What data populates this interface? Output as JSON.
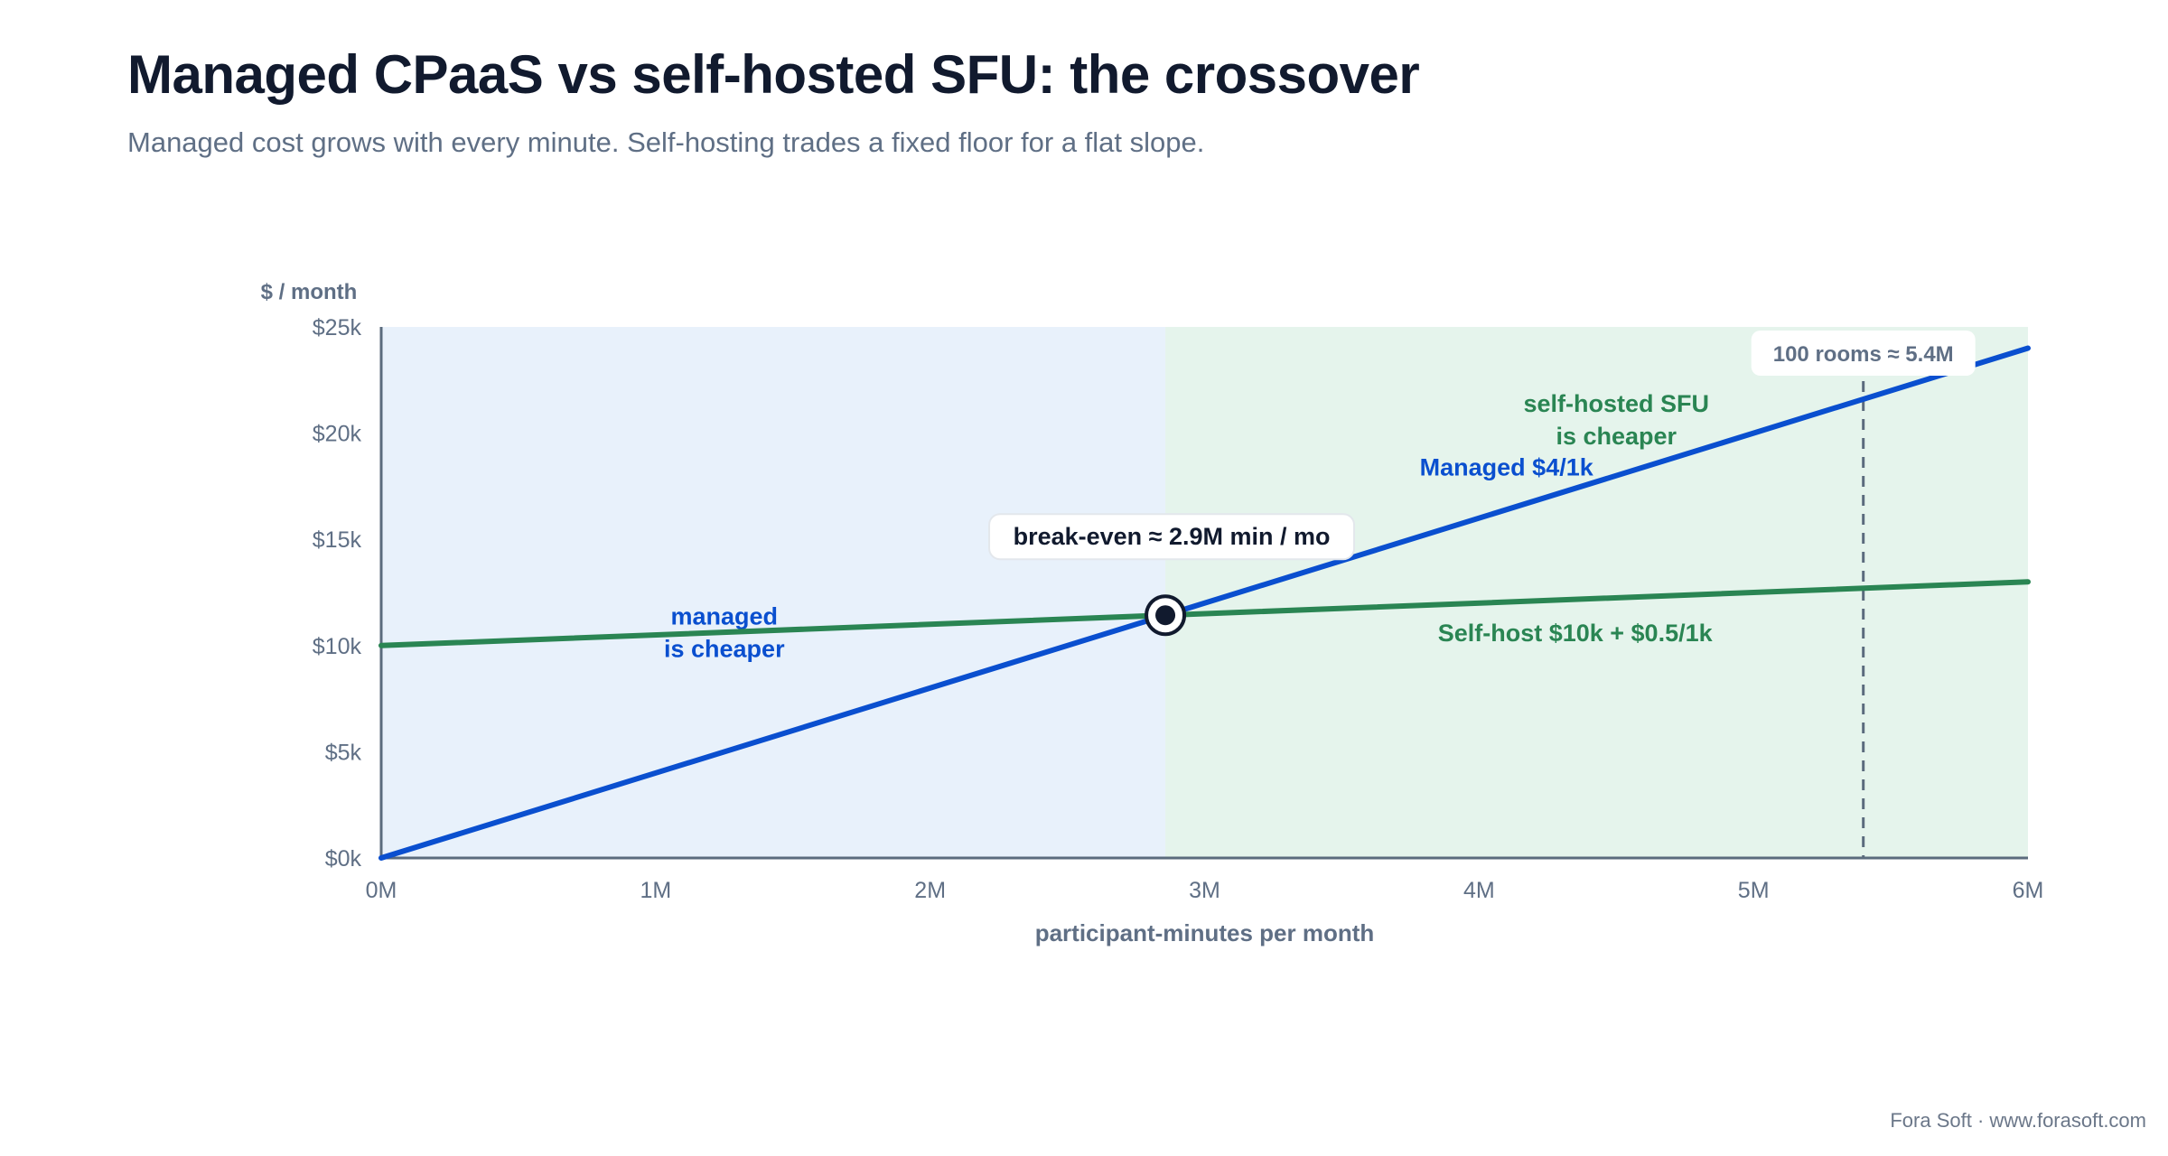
{
  "header": {
    "title": "Managed CPaaS vs self-hosted SFU: the crossover",
    "subtitle": "Managed cost grows with every minute. Self-hosting trades a fixed floor for a flat slope."
  },
  "footer": {
    "credit": "Fora Soft · www.forasoft.com"
  },
  "colors": {
    "managed": "#0a4fcf",
    "selfhost": "#2a8553",
    "managed_region": "#e8f1fb",
    "selfhost_region": "#e5f4ec",
    "axis": "#5b6b7d",
    "text_muted": "#5f6f85",
    "marker": "#111a2e"
  },
  "chart_data": {
    "type": "line",
    "xlabel": "participant-minutes per month",
    "ylabel": "$ / month",
    "xlim": [
      0,
      6
    ],
    "ylim": [
      0,
      25000
    ],
    "x_unit": "M participant-minutes",
    "x_ticks": [
      {
        "value": 0,
        "label": "0M"
      },
      {
        "value": 1,
        "label": "1M"
      },
      {
        "value": 2,
        "label": "2M"
      },
      {
        "value": 3,
        "label": "3M"
      },
      {
        "value": 4,
        "label": "4M"
      },
      {
        "value": 5,
        "label": "5M"
      },
      {
        "value": 6,
        "label": "6M"
      }
    ],
    "y_ticks": [
      {
        "value": 0,
        "label": "$0k"
      },
      {
        "value": 5000,
        "label": "$5k"
      },
      {
        "value": 10000,
        "label": "$10k"
      },
      {
        "value": 15000,
        "label": "$15k"
      },
      {
        "value": 20000,
        "label": "$20k"
      },
      {
        "value": 25000,
        "label": "$25k"
      }
    ],
    "series": [
      {
        "name": "Managed $4/1k",
        "key": "managed",
        "x": [
          0,
          6
        ],
        "y": [
          0,
          24000
        ]
      },
      {
        "name": "Self-host $10k + $0.5/1k",
        "key": "selfhost",
        "x": [
          0,
          6
        ],
        "y": [
          10000,
          13000
        ]
      }
    ],
    "regions": [
      {
        "key": "managed",
        "x_start": 0,
        "x_end": 2.857,
        "label": "managed\nis cheaper",
        "label_x": 1.25,
        "label_y": 11000
      },
      {
        "key": "selfhost",
        "x_start": 2.857,
        "x_end": 6,
        "label": "self-hosted SFU\nis cheaper",
        "label_x": 4.5,
        "label_y": 21000
      }
    ],
    "break_even": {
      "x": 2.857,
      "y": 11429,
      "label": "break-even ≈ 2.9M min / mo"
    },
    "reference_line": {
      "x": 5.4,
      "label": "100 rooms ≈ 5.4M"
    },
    "series_labels": [
      {
        "key": "managed",
        "text": "Managed $4/1k",
        "x": 4.1,
        "y": 18000
      },
      {
        "key": "selfhost",
        "text": "Self-host $10k + $0.5/1k",
        "x": 4.35,
        "y": 10200
      }
    ],
    "grid": false,
    "legend": "none (inline labels)"
  }
}
